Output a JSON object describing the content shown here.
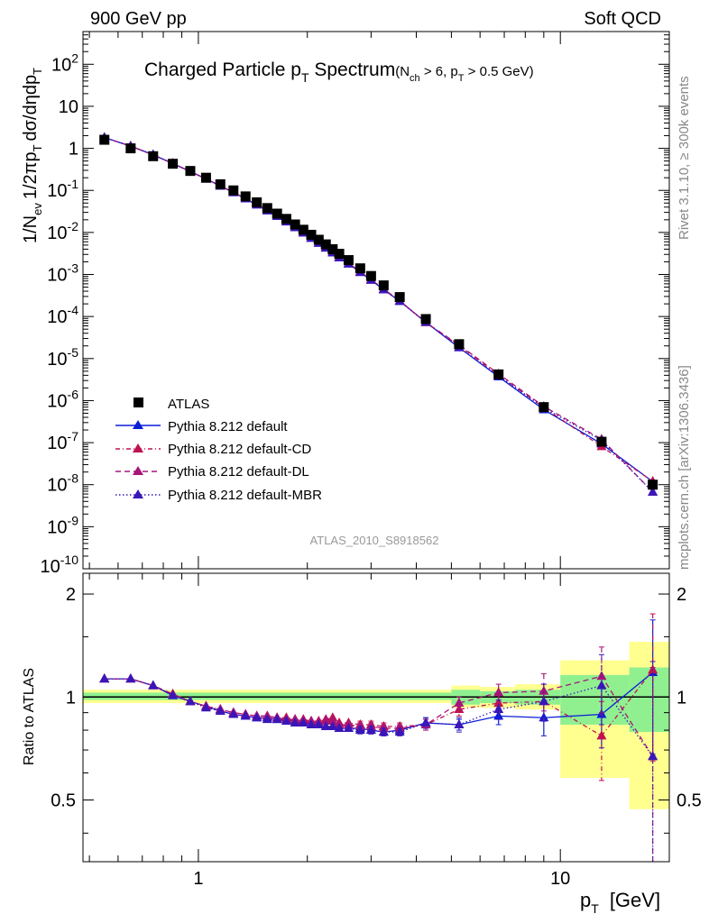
{
  "header": {
    "left": "900 GeV pp",
    "right": "Soft QCD"
  },
  "title": {
    "main": "Charged Particle p",
    "main_sub": "T",
    "main_tail": " Spectrum",
    "cut_a": "(N",
    "cut_a_sub": "ch",
    "cut_b": " > 6, p",
    "cut_b_sub": "T",
    "cut_c": " > 0.5 GeV)"
  },
  "side_labels": {
    "rivet": "Rivet 3.1.10, ≥ 300k events",
    "mcplots": "mcplots.cern.ch [arXiv:1306.3436]"
  },
  "analysis_id": "ATLAS_2010_S8918562",
  "colors": {
    "atlas": "#000000",
    "default": "#0a1ed8",
    "cd": "#c01252",
    "dl": "#a8157a",
    "mbr": "#3a16b8",
    "band_inner": "#90f090",
    "band_outer": "#ffff90"
  },
  "chart_data": [
    {
      "type": "scatter",
      "title": "Charged Particle pT Spectrum (Nch > 6, pT > 0.5 GeV)",
      "ylabel": "1/Nev 1/2πpT dσ/dηdpT",
      "xlabel": "pT [GeV]",
      "xscale": "log",
      "yscale": "log",
      "xlim": [
        0.48,
        20
      ],
      "ylim": [
        1e-10,
        600
      ],
      "x": [
        0.55,
        0.65,
        0.75,
        0.85,
        0.95,
        1.05,
        1.15,
        1.25,
        1.35,
        1.45,
        1.55,
        1.65,
        1.75,
        1.85,
        1.95,
        2.05,
        2.15,
        2.25,
        2.35,
        2.45,
        2.6,
        2.8,
        3.0,
        3.25,
        3.6,
        4.25,
        5.25,
        6.75,
        9.0,
        13.0,
        18.0
      ],
      "yticks": [
        "10^{-10}",
        "10^{-9}",
        "10^{-8}",
        "10^{-7}",
        "10^{-6}",
        "10^{-5}",
        "10^{-4}",
        "10^{-3}",
        "10^{-2}",
        "10^{-1}",
        "1",
        "10",
        "10^{2}"
      ],
      "series": [
        {
          "name": "ATLAS",
          "key": "atlas",
          "values": [
            1.6,
            1.0,
            0.65,
            0.43,
            0.29,
            0.2,
            0.14,
            0.1,
            0.072,
            0.052,
            0.038,
            0.028,
            0.021,
            0.0155,
            0.0116,
            0.0088,
            0.0067,
            0.0052,
            0.004,
            0.0031,
            0.0022,
            0.0014,
            0.00092,
            0.00055,
            0.00029,
            8.7e-05,
            2.2e-05,
            4.2e-06,
            7e-07,
            1.05e-07,
            1e-08
          ]
        },
        {
          "name": "Pythia 8.212 default",
          "key": "default",
          "ratio": [
            1.13,
            1.13,
            1.08,
            1.01,
            0.97,
            0.94,
            0.91,
            0.89,
            0.88,
            0.87,
            0.87,
            0.86,
            0.86,
            0.85,
            0.84,
            0.83,
            0.83,
            0.82,
            0.82,
            0.81,
            0.81,
            0.81,
            0.8,
            0.79,
            0.8,
            0.84,
            0.83,
            0.88,
            0.87,
            0.89,
            1.18
          ],
          "ratio_err": [
            0.01,
            0.01,
            0.01,
            0.01,
            0.01,
            0.01,
            0.01,
            0.01,
            0.01,
            0.01,
            0.01,
            0.01,
            0.01,
            0.01,
            0.01,
            0.01,
            0.01,
            0.01,
            0.01,
            0.01,
            0.01,
            0.02,
            0.02,
            0.02,
            0.02,
            0.03,
            0.03,
            0.05,
            0.1,
            0.18,
            0.5
          ]
        },
        {
          "name": "Pythia 8.212 default-CD",
          "key": "cd",
          "ratio": [
            1.13,
            1.13,
            1.08,
            1.02,
            0.97,
            0.94,
            0.92,
            0.9,
            0.89,
            0.88,
            0.88,
            0.87,
            0.87,
            0.86,
            0.86,
            0.85,
            0.85,
            0.86,
            0.87,
            0.84,
            0.84,
            0.83,
            0.83,
            0.82,
            0.82,
            0.83,
            0.92,
            0.96,
            0.97,
            0.77,
            1.2
          ],
          "ratio_err": [
            0.01,
            0.01,
            0.01,
            0.01,
            0.01,
            0.01,
            0.01,
            0.01,
            0.01,
            0.01,
            0.01,
            0.01,
            0.01,
            0.01,
            0.01,
            0.01,
            0.01,
            0.01,
            0.01,
            0.01,
            0.01,
            0.02,
            0.02,
            0.02,
            0.02,
            0.03,
            0.04,
            0.06,
            0.12,
            0.2,
            0.55
          ]
        },
        {
          "name": "Pythia 8.212 default-DL",
          "key": "dl",
          "ratio": [
            1.13,
            1.13,
            1.08,
            1.02,
            0.97,
            0.94,
            0.92,
            0.9,
            0.89,
            0.88,
            0.88,
            0.87,
            0.86,
            0.86,
            0.85,
            0.85,
            0.84,
            0.85,
            0.85,
            0.83,
            0.83,
            0.82,
            0.82,
            0.81,
            0.81,
            0.83,
            0.96,
            1.03,
            1.04,
            1.15,
            0.67
          ],
          "ratio_err": [
            0.01,
            0.01,
            0.01,
            0.01,
            0.01,
            0.01,
            0.01,
            0.01,
            0.01,
            0.01,
            0.01,
            0.01,
            0.01,
            0.01,
            0.01,
            0.01,
            0.01,
            0.01,
            0.01,
            0.01,
            0.01,
            0.02,
            0.02,
            0.02,
            0.02,
            0.03,
            0.04,
            0.06,
            0.13,
            0.25,
            0.55
          ]
        },
        {
          "name": "Pythia 8.212 default-MBR",
          "key": "mbr",
          "ratio": [
            1.13,
            1.13,
            1.08,
            1.01,
            0.97,
            0.93,
            0.91,
            0.89,
            0.88,
            0.87,
            0.86,
            0.86,
            0.85,
            0.84,
            0.84,
            0.83,
            0.83,
            0.82,
            0.82,
            0.81,
            0.81,
            0.8,
            0.8,
            0.79,
            0.79,
            0.84,
            0.83,
            0.92,
            0.97,
            1.08,
            0.67
          ],
          "ratio_err": [
            0.01,
            0.01,
            0.01,
            0.01,
            0.01,
            0.01,
            0.01,
            0.01,
            0.01,
            0.01,
            0.01,
            0.01,
            0.01,
            0.01,
            0.01,
            0.01,
            0.01,
            0.01,
            0.01,
            0.01,
            0.01,
            0.02,
            0.02,
            0.02,
            0.02,
            0.03,
            0.04,
            0.06,
            0.12,
            0.25,
            0.6
          ]
        }
      ],
      "legend": [
        "ATLAS",
        "Pythia 8.212 default",
        "Pythia 8.212 default-CD",
        "Pythia 8.212 default-DL",
        "Pythia 8.212 default-MBR"
      ],
      "legend_position": "bottom-left"
    },
    {
      "type": "line",
      "ylabel": "Ratio to ATLAS",
      "xlabel": "pT [GeV]",
      "xscale": "log",
      "xlim": [
        0.48,
        20
      ],
      "ylim": [
        0.33,
        2.3
      ],
      "yticks": [
        "0.5",
        "1",
        "2"
      ],
      "xticks": [
        "1",
        "10"
      ],
      "bands": [
        {
          "x_bins": [
            [
              0.48,
              5.0
            ],
            [
              5.0,
              6.0
            ],
            [
              6.0,
              7.5
            ],
            [
              7.5,
              10.0
            ],
            [
              10.0,
              15.5
            ],
            [
              15.5,
              20.0
            ]
          ],
          "inner": [
            [
              0.98,
              1.03
            ],
            [
              0.95,
              1.05
            ],
            [
              0.96,
              1.04
            ],
            [
              0.95,
              1.05
            ],
            [
              0.83,
              1.16
            ],
            [
              0.79,
              1.22
            ]
          ],
          "outer": [
            [
              0.96,
              1.05
            ],
            [
              0.93,
              1.08
            ],
            [
              0.93,
              1.07
            ],
            [
              0.92,
              1.09
            ],
            [
              0.58,
              1.28
            ],
            [
              0.47,
              1.45
            ]
          ]
        }
      ]
    }
  ],
  "legend_items": [
    {
      "label": "ATLAS"
    },
    {
      "label": "Pythia 8.212 default"
    },
    {
      "label": "Pythia 8.212 default-CD"
    },
    {
      "label": "Pythia 8.212 default-DL"
    },
    {
      "label": "Pythia 8.212 default-MBR"
    }
  ],
  "axis_labels": {
    "main_y_parts": [
      "1/N",
      "ev",
      "1/2πp",
      "T",
      "dσ/dηdp",
      "T"
    ],
    "ratio_y": "Ratio to ATLAS",
    "x_main": "p",
    "x_sub": "T",
    "x_unit": "[GeV]"
  }
}
